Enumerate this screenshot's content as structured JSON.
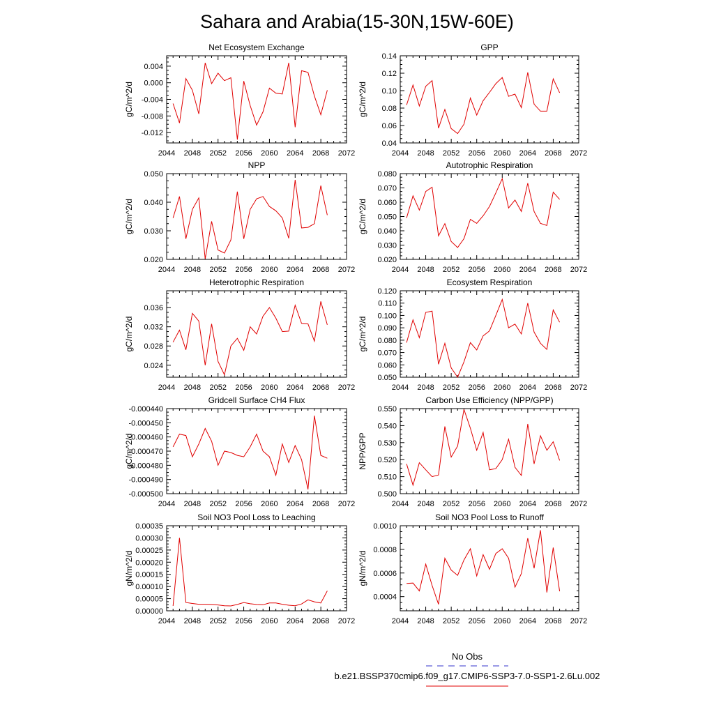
{
  "figure": {
    "title": "Sahara and Arabia(15-30N,15W-60E)",
    "legend": {
      "entries": [
        {
          "label": "No Obs",
          "color": "#3333cc",
          "dashed": true
        },
        {
          "label": "b.e21.BSSP370cmip6.f09_g17.CMIP6-SSP3-7.0-SSP1-2.6Lu.002",
          "color": "#e00000",
          "dashed": false
        }
      ]
    }
  },
  "chart_data": [
    {
      "type": "line",
      "title": "Net Ecosystem Exchange",
      "xlabel": "",
      "ylabel": "gC/m^2/d",
      "xlim": [
        2044,
        2072
      ],
      "ylim": [
        -0.0145,
        0.0065
      ],
      "yticks": [
        -0.012,
        -0.008,
        -0.004,
        0.0,
        0.004
      ],
      "ytick_labels": [
        "-0.012",
        "-0.008",
        "-0.004",
        "0.000",
        "0.004"
      ],
      "xticks": [
        2044,
        2048,
        2052,
        2056,
        2060,
        2064,
        2068,
        2072
      ],
      "x": [
        2045,
        2046,
        2047,
        2048,
        2049,
        2050,
        2051,
        2052,
        2053,
        2054,
        2055,
        2056,
        2057,
        2058,
        2059,
        2060,
        2061,
        2062,
        2063,
        2064,
        2065,
        2066,
        2067,
        2068,
        2069
      ],
      "series": [
        {
          "values": [
            -0.005,
            -0.0097,
            0.001,
            -0.0018,
            -0.0075,
            0.0048,
            -0.0002,
            0.0023,
            0.0005,
            0.0012,
            -0.0137,
            0.0004,
            -0.0055,
            -0.0102,
            -0.007,
            -0.0013,
            -0.0025,
            -0.0027,
            0.0048,
            -0.0107,
            0.0029,
            0.0025,
            -0.0032,
            -0.0077,
            -0.0018
          ],
          "color": "#e00000"
        }
      ]
    },
    {
      "type": "line",
      "title": "GPP",
      "xlabel": "",
      "ylabel": "gC/m^2/d",
      "xlim": [
        2044,
        2072
      ],
      "ylim": [
        0.04,
        0.14
      ],
      "yticks": [
        0.04,
        0.06,
        0.08,
        0.1,
        0.12,
        0.14
      ],
      "ytick_labels": [
        "0.04",
        "0.06",
        "0.08",
        "0.10",
        "0.12",
        "0.14"
      ],
      "xticks": [
        2044,
        2048,
        2052,
        2056,
        2060,
        2064,
        2068,
        2072
      ],
      "x": [
        2045,
        2046,
        2047,
        2048,
        2049,
        2050,
        2051,
        2052,
        2053,
        2054,
        2055,
        2056,
        2057,
        2058,
        2059,
        2060,
        2061,
        2062,
        2063,
        2064,
        2065,
        2066,
        2067,
        2068,
        2069
      ],
      "series": [
        {
          "values": [
            0.0835,
            0.1065,
            0.0825,
            0.105,
            0.1115,
            0.057,
            0.0785,
            0.0565,
            0.0508,
            0.0615,
            0.0915,
            0.072,
            0.0885,
            0.098,
            0.108,
            0.115,
            0.0935,
            0.096,
            0.0805,
            0.121,
            0.0845,
            0.0765,
            0.0765,
            0.1135,
            0.0975
          ],
          "color": "#e00000"
        }
      ]
    },
    {
      "type": "line",
      "title": "NPP",
      "xlabel": "",
      "ylabel": "gC/m^2/d",
      "xlim": [
        2044,
        2072
      ],
      "ylim": [
        0.02,
        0.05
      ],
      "yticks": [
        0.02,
        0.03,
        0.04,
        0.05
      ],
      "ytick_labels": [
        "0.020",
        "0.030",
        "0.040",
        "0.050"
      ],
      "xticks": [
        2044,
        2048,
        2052,
        2056,
        2060,
        2064,
        2068,
        2072
      ],
      "x": [
        2045,
        2046,
        2047,
        2048,
        2049,
        2050,
        2051,
        2052,
        2053,
        2054,
        2055,
        2056,
        2057,
        2058,
        2059,
        2060,
        2061,
        2062,
        2063,
        2064,
        2065,
        2066,
        2067,
        2068,
        2069
      ],
      "series": [
        {
          "values": [
            0.0345,
            0.042,
            0.0272,
            0.0375,
            0.0415,
            0.0202,
            0.0333,
            0.0233,
            0.0222,
            0.0268,
            0.0437,
            0.0272,
            0.0375,
            0.0412,
            0.042,
            0.0385,
            0.037,
            0.0345,
            0.0274,
            0.0478,
            0.031,
            0.0312,
            0.0325,
            0.0458,
            0.0355
          ],
          "color": "#e00000"
        }
      ]
    },
    {
      "type": "line",
      "title": "Autotrophic Respiration",
      "xlabel": "",
      "ylabel": "gC/m^2/d",
      "xlim": [
        2044,
        2072
      ],
      "ylim": [
        0.02,
        0.08
      ],
      "yticks": [
        0.02,
        0.03,
        0.04,
        0.05,
        0.06,
        0.07,
        0.08
      ],
      "ytick_labels": [
        "0.020",
        "0.030",
        "0.040",
        "0.050",
        "0.060",
        "0.070",
        "0.080"
      ],
      "xticks": [
        2044,
        2048,
        2052,
        2056,
        2060,
        2064,
        2068,
        2072
      ],
      "x": [
        2045,
        2046,
        2047,
        2048,
        2049,
        2050,
        2051,
        2052,
        2053,
        2054,
        2055,
        2056,
        2057,
        2058,
        2059,
        2060,
        2061,
        2062,
        2063,
        2064,
        2065,
        2066,
        2067,
        2068,
        2069
      ],
      "series": [
        {
          "values": [
            0.049,
            0.0645,
            0.0545,
            0.0675,
            0.0705,
            0.0365,
            0.045,
            0.0325,
            0.0283,
            0.0345,
            0.048,
            0.0452,
            0.0505,
            0.057,
            0.0665,
            0.0765,
            0.056,
            0.0615,
            0.0535,
            0.0733,
            0.0535,
            0.0452,
            0.0437,
            0.067,
            0.062
          ],
          "color": "#e00000"
        }
      ]
    },
    {
      "type": "line",
      "title": "Heterotrophic Respiration",
      "xlabel": "",
      "ylabel": "gC/m^2/d",
      "xlim": [
        2044,
        2072
      ],
      "ylim": [
        0.0215,
        0.0395
      ],
      "yticks": [
        0.024,
        0.028,
        0.032,
        0.036
      ],
      "ytick_labels": [
        "0.024",
        "0.028",
        "0.032",
        "0.036"
      ],
      "xticks": [
        2044,
        2048,
        2052,
        2056,
        2060,
        2064,
        2068,
        2072
      ],
      "x": [
        2045,
        2046,
        2047,
        2048,
        2049,
        2050,
        2051,
        2052,
        2053,
        2054,
        2055,
        2056,
        2057,
        2058,
        2059,
        2060,
        2061,
        2062,
        2063,
        2064,
        2065,
        2066,
        2067,
        2068,
        2069
      ],
      "series": [
        {
          "values": [
            0.0288,
            0.0313,
            0.0272,
            0.0348,
            0.0332,
            0.024,
            0.0326,
            0.0248,
            0.022,
            0.028,
            0.0296,
            0.0271,
            0.032,
            0.0305,
            0.0342,
            0.036,
            0.0338,
            0.031,
            0.0311,
            0.0365,
            0.0327,
            0.0326,
            0.029,
            0.0373,
            0.0324
          ],
          "color": "#e00000"
        }
      ]
    },
    {
      "type": "line",
      "title": "Ecosystem Respiration",
      "xlabel": "",
      "ylabel": "gC/m^2/d",
      "xlim": [
        2044,
        2072
      ],
      "ylim": [
        0.05,
        0.12
      ],
      "yticks": [
        0.05,
        0.06,
        0.07,
        0.08,
        0.09,
        0.1,
        0.11,
        0.12
      ],
      "ytick_labels": [
        "0.050",
        "0.060",
        "0.070",
        "0.080",
        "0.090",
        "0.100",
        "0.110",
        "0.120"
      ],
      "xticks": [
        2044,
        2048,
        2052,
        2056,
        2060,
        2064,
        2068,
        2072
      ],
      "x": [
        2045,
        2046,
        2047,
        2048,
        2049,
        2050,
        2051,
        2052,
        2053,
        2054,
        2055,
        2056,
        2057,
        2058,
        2059,
        2060,
        2061,
        2062,
        2063,
        2064,
        2065,
        2066,
        2067,
        2068,
        2069
      ],
      "series": [
        {
          "values": [
            0.078,
            0.0965,
            0.082,
            0.1025,
            0.1035,
            0.0605,
            0.0775,
            0.0575,
            0.05,
            0.0625,
            0.078,
            0.072,
            0.0835,
            0.0875,
            0.1,
            0.113,
            0.09,
            0.093,
            0.085,
            0.11,
            0.0865,
            0.0775,
            0.0725,
            0.1045,
            0.0945
          ],
          "color": "#e00000"
        }
      ]
    },
    {
      "type": "line",
      "title": "Gridcell Surface CH4 Flux",
      "xlabel": "",
      "ylabel": "gC/m^2/d",
      "xlim": [
        2044,
        2072
      ],
      "ylim": [
        -0.0005,
        -0.00044
      ],
      "yticks": [
        -0.0005,
        -0.00049,
        -0.00048,
        -0.00047,
        -0.00046,
        -0.00045,
        -0.00044
      ],
      "ytick_labels": [
        "-0.000500",
        "-0.000490",
        "-0.000480",
        "-0.000470",
        "-0.000460",
        "-0.000450",
        "-0.000440"
      ],
      "xticks": [
        2044,
        2048,
        2052,
        2056,
        2060,
        2064,
        2068,
        2072
      ],
      "x": [
        2045,
        2046,
        2047,
        2048,
        2049,
        2050,
        2051,
        2052,
        2053,
        2054,
        2055,
        2056,
        2057,
        2058,
        2059,
        2060,
        2061,
        2062,
        2063,
        2064,
        2065,
        2066,
        2067,
        2068,
        2069
      ],
      "series": [
        {
          "values": [
            -0.000467,
            -0.000458,
            -0.000459,
            -0.000474,
            -0.000465,
            -0.000454,
            -0.000463,
            -0.00048,
            -0.00047,
            -0.000471,
            -0.000473,
            -0.000474,
            -0.000467,
            -0.000458,
            -0.00047,
            -0.000474,
            -0.000487,
            -0.000465,
            -0.000478,
            -0.000466,
            -0.000476,
            -0.000497,
            -0.000445,
            -0.000473,
            -0.000475
          ],
          "color": "#e00000"
        }
      ]
    },
    {
      "type": "line",
      "title": "Carbon Use Efficiency (NPP/GPP)",
      "xlabel": "",
      "ylabel": "NPP/GPP",
      "xlim": [
        2044,
        2072
      ],
      "ylim": [
        0.5,
        0.55
      ],
      "yticks": [
        0.5,
        0.51,
        0.52,
        0.53,
        0.54,
        0.55
      ],
      "ytick_labels": [
        "0.500",
        "0.510",
        "0.520",
        "0.530",
        "0.540",
        "0.550"
      ],
      "xticks": [
        2044,
        2048,
        2052,
        2056,
        2060,
        2064,
        2068,
        2072
      ],
      "x": [
        2045,
        2046,
        2047,
        2048,
        2049,
        2050,
        2051,
        2052,
        2053,
        2054,
        2055,
        2056,
        2057,
        2058,
        2059,
        2060,
        2061,
        2062,
        2063,
        2064,
        2065,
        2066,
        2067,
        2068,
        2069
      ],
      "series": [
        {
          "values": [
            0.5175,
            0.505,
            0.5182,
            0.514,
            0.51,
            0.511,
            0.5395,
            0.5215,
            0.528,
            0.5495,
            0.5385,
            0.5255,
            0.536,
            0.514,
            0.5147,
            0.52,
            0.532,
            0.5155,
            0.5107,
            0.541,
            0.5175,
            0.534,
            0.5255,
            0.5305,
            0.5195
          ],
          "color": "#e00000"
        }
      ]
    },
    {
      "type": "line",
      "title": "Soil NO3 Pool Loss to Leaching",
      "xlabel": "",
      "ylabel": "gN/m^2/d",
      "xlim": [
        2044,
        2072
      ],
      "ylim": [
        0,
        0.00035
      ],
      "yticks": [
        0,
        5e-05,
        0.0001,
        0.00015,
        0.0002,
        0.00025,
        0.0003,
        0.00035
      ],
      "ytick_labels": [
        "0.00000",
        "0.00005",
        "0.00010",
        "0.00015",
        "0.00020",
        "0.00025",
        "0.00030",
        "0.00035"
      ],
      "xticks": [
        2044,
        2048,
        2052,
        2056,
        2060,
        2064,
        2068,
        2072
      ],
      "x": [
        2045,
        2046,
        2047,
        2048,
        2049,
        2050,
        2051,
        2052,
        2053,
        2054,
        2055,
        2056,
        2057,
        2058,
        2059,
        2060,
        2061,
        2062,
        2063,
        2064,
        2065,
        2066,
        2067,
        2068,
        2069
      ],
      "series": [
        {
          "values": [
            2e-05,
            0.0003,
            3.4e-05,
            3e-05,
            2.7e-05,
            2.7e-05,
            2.6e-05,
            2.4e-05,
            2.1e-05,
            2e-05,
            2.6e-05,
            3.4e-05,
            2.9e-05,
            2.6e-05,
            2.5e-05,
            3.2e-05,
            3.2e-05,
            2.7e-05,
            2.3e-05,
            2.1e-05,
            2.8e-05,
            4.5e-05,
            3.7e-05,
            3.2e-05,
            8.2e-05
          ],
          "color": "#e00000"
        }
      ]
    },
    {
      "type": "line",
      "title": "Soil NO3 Pool Loss to Runoff",
      "xlabel": "",
      "ylabel": "gN/m^2/d",
      "xlim": [
        2044,
        2072
      ],
      "ylim": [
        0.00028,
        0.001
      ],
      "yticks": [
        0.0004,
        0.0006,
        0.0008,
        0.001
      ],
      "ytick_labels": [
        "0.0004",
        "0.0006",
        "0.0008",
        "0.0010"
      ],
      "xticks": [
        2044,
        2048,
        2052,
        2056,
        2060,
        2064,
        2068,
        2072
      ],
      "x": [
        2045,
        2046,
        2047,
        2048,
        2049,
        2050,
        2051,
        2052,
        2053,
        2054,
        2055,
        2056,
        2057,
        2058,
        2059,
        2060,
        2061,
        2062,
        2063,
        2064,
        2065,
        2066,
        2067,
        2068,
        2069
      ],
      "series": [
        {
          "values": [
            0.000512,
            0.000515,
            0.000448,
            0.000675,
            0.000495,
            0.000335,
            0.000725,
            0.000625,
            0.00058,
            0.00071,
            0.000805,
            0.000575,
            0.000755,
            0.000632,
            0.000765,
            0.000805,
            0.000725,
            0.00048,
            0.000595,
            0.000895,
            0.00064,
            0.000962,
            0.000435,
            0.000815,
            0.000445
          ],
          "color": "#e00000"
        }
      ]
    }
  ]
}
